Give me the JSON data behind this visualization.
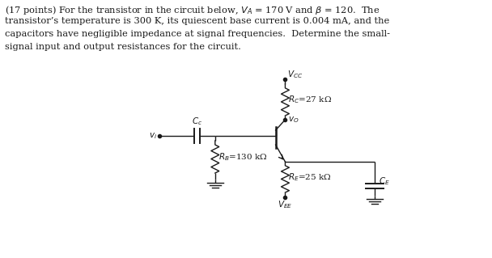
{
  "bg_color": "#ffffff",
  "line_color": "#1a1a1a",
  "text_color": "#1a1a1a",
  "Vcc_label": "$V_{CC}$",
  "Vee_label": "$V_{EE}$",
  "Rc_label": "$R_C$=27 kΩ",
  "Rb_label": "$R_B$=130 kΩ",
  "Re_label": "$R_E$=25 kΩ",
  "Cc_label": "$C_c$",
  "Ce_label": "$C_E$",
  "vi_label": "$v_i$",
  "vo_label": "$v_O$",
  "text_line1": "(​17 ​points​) For the transistor in the circuit below, $V_A$ = 170 V and $\\beta$ = 120.  The",
  "text_line2": "transistor’s temperature is 300 K, its quiescent base current is 0.004 mA, and the",
  "text_line3": "capacitors have negligible impedance at signal frequencies.  Determine the small-",
  "text_line4": "signal input and output resistances for the circuit."
}
